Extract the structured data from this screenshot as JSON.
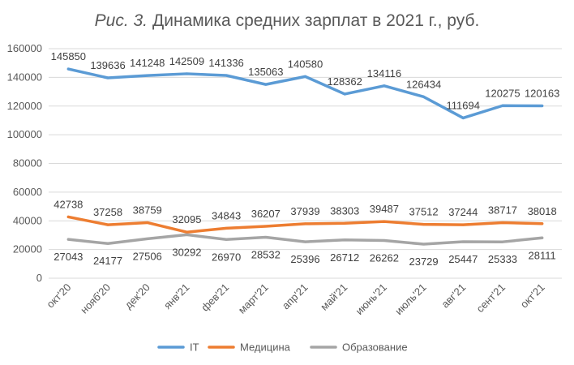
{
  "chart_data": {
    "type": "line",
    "title_prefix": "Рис. 3.",
    "title_main": "Динамика средних зарплат в 2021 г., руб.",
    "categories": [
      "окт'20",
      "нояб'20",
      "дек'20",
      "янв'21",
      "фев'21",
      "март'21",
      "апр'21",
      "май'21",
      "июнь'21",
      "июль'21",
      "авг'21",
      "сент'21",
      "окт'21"
    ],
    "ylim": [
      0,
      160000
    ],
    "yticks": [
      "0",
      "20000",
      "40000",
      "60000",
      "80000",
      "100000",
      "120000",
      "140000",
      "160000"
    ],
    "ytick_values": [
      0,
      20000,
      40000,
      60000,
      80000,
      100000,
      120000,
      140000,
      160000
    ],
    "grid": true,
    "legend_position": "bottom",
    "series": [
      {
        "name": "IT",
        "color": "#5b9bd5",
        "label_position": "above",
        "values": [
          145850,
          139636,
          141248,
          142509,
          141336,
          135063,
          140580,
          128362,
          134116,
          126434,
          111694,
          120275,
          120163
        ]
      },
      {
        "name": "Медицина",
        "color": "#ed7d31",
        "label_position": "above",
        "values": [
          42738,
          37258,
          38759,
          32095,
          34843,
          36207,
          37939,
          38303,
          39487,
          37512,
          37244,
          38717,
          38018
        ]
      },
      {
        "name": "Образование",
        "color": "#a5a5a5",
        "label_position": "below",
        "values": [
          27043,
          24177,
          27506,
          30292,
          26970,
          28532,
          25396,
          26712,
          26262,
          23729,
          25447,
          25333,
          28111
        ]
      }
    ]
  }
}
